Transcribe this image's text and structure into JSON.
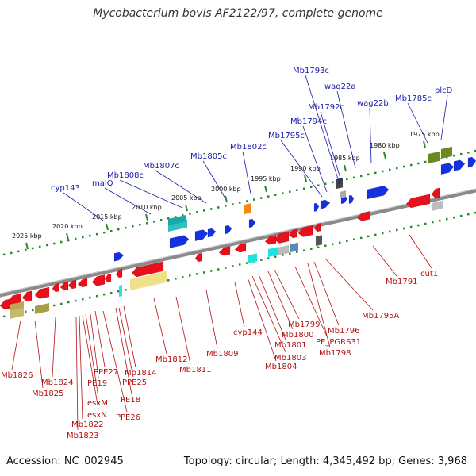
{
  "header": {
    "title": "Mycobacterium bovis AF2122/97, complete genome"
  },
  "footer": {
    "accession": "Accession: NC_002945",
    "summary": "Topology: circular; Length: 4,345,492 bp; Genes: 3,968"
  },
  "colors": {
    "backbone": "#8a8a8a",
    "reverse_gene": "#e8101a",
    "forward_gene": "#1430e0",
    "top_label": "#1a1aa8",
    "bottom_label": "#b31212",
    "tick_dots": "#2a8a2a"
  },
  "scale_ticks": [
    "2025 kbp",
    "2020 kbp",
    "2015 kbp",
    "2010 kbp",
    "2005 kbp",
    "2000 kbp",
    "1995 kbp",
    "1990 kbp",
    "1985 kbp",
    "1980 kbp",
    "1975 kbp"
  ],
  "genes_top": [
    "cyp143",
    "malQ",
    "Mb1808c",
    "Mb1807c",
    "Mb1805c",
    "Mb1802c",
    "Mb1795c",
    "Mb1794c",
    "Mb1793c",
    "Mb1792c",
    "wag22a",
    "wag22b",
    "Mb1785c",
    "plcD"
  ],
  "genes_bottom": [
    "Mb1826",
    "Mb1825",
    "Mb1824",
    "Mb1823",
    "Mb1822",
    "esxN",
    "esxM",
    "PE19",
    "PPE27",
    "PE18",
    "PPE26",
    "PPE25",
    "Mb1814",
    "Mb1812",
    "Mb1811",
    "Mb1809",
    "cyp144",
    "Mb1804",
    "Mb1803",
    "Mb1801",
    "Mb1800",
    "Mb1799",
    "PE_PGRS31",
    "Mb1798",
    "Mb1796",
    "Mb1795A",
    "Mb1791",
    "cut1"
  ]
}
